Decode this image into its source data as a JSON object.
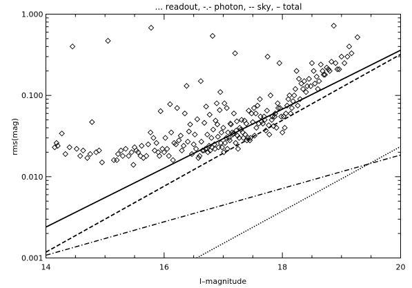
{
  "chart_data": {
    "type": "scatter",
    "title": "... readout, -.- photon, -- sky, – total",
    "xlabel": "I–magnitude",
    "ylabel": "rms(mag)",
    "xlim": [
      14,
      20
    ],
    "ylim": [
      0.001,
      1.0
    ],
    "y_scale": "log",
    "x_ticks": [
      {
        "value": 14,
        "label": "14"
      },
      {
        "value": 16,
        "label": "16"
      },
      {
        "value": 18,
        "label": "18"
      },
      {
        "value": 20,
        "label": "20"
      }
    ],
    "y_ticks": [
      {
        "value": 0.001,
        "label": "0.001"
      },
      {
        "value": 0.01,
        "label": "0.010"
      },
      {
        "value": 0.1,
        "label": "0.100"
      },
      {
        "value": 1.0,
        "label": "1.000"
      }
    ],
    "marker": "open-diamond",
    "color": "#000000",
    "lines": [
      {
        "style": "dotted",
        "x": [
          16.55,
          20.0
        ],
        "y": [
          0.001,
          0.0235
        ]
      },
      {
        "style": "dash-dot",
        "x": [
          14.0,
          20.0
        ],
        "y": [
          0.00108,
          0.0185
        ]
      },
      {
        "style": "dashed",
        "x": [
          14.0,
          20.0
        ],
        "y": [
          0.00118,
          0.32
        ]
      },
      {
        "style": "solid",
        "x": [
          14.0,
          20.0
        ],
        "y": [
          0.0024,
          0.36
        ]
      }
    ],
    "points": [
      [
        14.18,
        0.026
      ],
      [
        14.15,
        0.023
      ],
      [
        14.2,
        0.024
      ],
      [
        14.27,
        0.034
      ],
      [
        14.33,
        0.019
      ],
      [
        14.4,
        0.023
      ],
      [
        14.45,
        0.4
      ],
      [
        14.52,
        0.022
      ],
      [
        14.58,
        0.018
      ],
      [
        14.63,
        0.021
      ],
      [
        14.7,
        0.017
      ],
      [
        14.75,
        0.019
      ],
      [
        14.78,
        0.047
      ],
      [
        14.85,
        0.02
      ],
      [
        14.9,
        0.021
      ],
      [
        14.95,
        0.015
      ],
      [
        15.05,
        0.47
      ],
      [
        15.15,
        0.016
      ],
      [
        15.2,
        0.016
      ],
      [
        15.22,
        0.019
      ],
      [
        15.27,
        0.021
      ],
      [
        15.3,
        0.018
      ],
      [
        15.35,
        0.022
      ],
      [
        15.4,
        0.018
      ],
      [
        15.45,
        0.02
      ],
      [
        15.48,
        0.014
      ],
      [
        15.5,
        0.023
      ],
      [
        15.53,
        0.021
      ],
      [
        15.56,
        0.02
      ],
      [
        15.6,
        0.018
      ],
      [
        15.62,
        0.024
      ],
      [
        15.65,
        0.017
      ],
      [
        15.7,
        0.018
      ],
      [
        15.73,
        0.025
      ],
      [
        15.77,
        0.035
      ],
      [
        15.78,
        0.68
      ],
      [
        15.82,
        0.03
      ],
      [
        15.84,
        0.021
      ],
      [
        15.87,
        0.026
      ],
      [
        15.9,
        0.02
      ],
      [
        15.92,
        0.018
      ],
      [
        15.94,
        0.064
      ],
      [
        15.97,
        0.022
      ],
      [
        16.0,
        0.02
      ],
      [
        16.02,
        0.03
      ],
      [
        16.05,
        0.022
      ],
      [
        16.08,
        0.018
      ],
      [
        16.1,
        0.078
      ],
      [
        16.12,
        0.035
      ],
      [
        16.15,
        0.016
      ],
      [
        16.17,
        0.026
      ],
      [
        16.2,
        0.025
      ],
      [
        16.22,
        0.07
      ],
      [
        16.25,
        0.028
      ],
      [
        16.28,
        0.032
      ],
      [
        16.3,
        0.021
      ],
      [
        16.33,
        0.024
      ],
      [
        16.35,
        0.06
      ],
      [
        16.38,
        0.131
      ],
      [
        16.4,
        0.027
      ],
      [
        16.42,
        0.036
      ],
      [
        16.44,
        0.044
      ],
      [
        16.47,
        0.019
      ],
      [
        16.5,
        0.025
      ],
      [
        16.52,
        0.033
      ],
      [
        16.54,
        0.022
      ],
      [
        16.56,
        0.051
      ],
      [
        16.58,
        0.017
      ],
      [
        16.6,
        0.018
      ],
      [
        16.62,
        0.15
      ],
      [
        16.63,
        0.027
      ],
      [
        16.65,
        0.021
      ],
      [
        16.67,
        0.021
      ],
      [
        16.68,
        0.046
      ],
      [
        16.7,
        0.022
      ],
      [
        16.71,
        0.073
      ],
      [
        16.73,
        0.033
      ],
      [
        16.74,
        0.02
      ],
      [
        16.76,
        0.024
      ],
      [
        16.77,
        0.058
      ],
      [
        16.78,
        0.021
      ],
      [
        16.8,
        0.03
      ],
      [
        16.81,
        0.023
      ],
      [
        16.82,
        0.54
      ],
      [
        16.83,
        0.038
      ],
      [
        16.85,
        0.025
      ],
      [
        16.86,
        0.022
      ],
      [
        16.87,
        0.049
      ],
      [
        16.89,
        0.08
      ],
      [
        16.9,
        0.044
      ],
      [
        16.91,
        0.031
      ],
      [
        16.92,
        0.023
      ],
      [
        16.94,
        0.066
      ],
      [
        16.95,
        0.11
      ],
      [
        16.96,
        0.026
      ],
      [
        16.97,
        0.035
      ],
      [
        16.98,
        0.023
      ],
      [
        17.0,
        0.04
      ],
      [
        17.01,
        0.02
      ],
      [
        17.02,
        0.08
      ],
      [
        17.03,
        0.026
      ],
      [
        17.05,
        0.03
      ],
      [
        17.06,
        0.07
      ],
      [
        17.07,
        0.022
      ],
      [
        17.08,
        0.035
      ],
      [
        17.1,
        0.03
      ],
      [
        17.11,
        0.028
      ],
      [
        17.12,
        0.045
      ],
      [
        17.13,
        0.044
      ],
      [
        17.15,
        0.035
      ],
      [
        17.16,
        0.033
      ],
      [
        17.17,
        0.034
      ],
      [
        17.18,
        0.06
      ],
      [
        17.2,
        0.33
      ],
      [
        17.21,
        0.026
      ],
      [
        17.22,
        0.037
      ],
      [
        17.23,
        0.048
      ],
      [
        17.24,
        0.032
      ],
      [
        17.25,
        0.022
      ],
      [
        17.27,
        0.03
      ],
      [
        17.28,
        0.04
      ],
      [
        17.3,
        0.038
      ],
      [
        17.31,
        0.05
      ],
      [
        17.33,
        0.035
      ],
      [
        17.34,
        0.03
      ],
      [
        17.36,
        0.049
      ],
      [
        17.37,
        0.033
      ],
      [
        17.39,
        0.045
      ],
      [
        17.4,
        0.028
      ],
      [
        17.42,
        0.03
      ],
      [
        17.43,
        0.065
      ],
      [
        17.45,
        0.028
      ],
      [
        17.46,
        0.03
      ],
      [
        17.48,
        0.06
      ],
      [
        17.5,
        0.047
      ],
      [
        17.52,
        0.07
      ],
      [
        17.53,
        0.032
      ],
      [
        17.55,
        0.06
      ],
      [
        17.56,
        0.04
      ],
      [
        17.58,
        0.075
      ],
      [
        17.6,
        0.045
      ],
      [
        17.62,
        0.09
      ],
      [
        17.63,
        0.055
      ],
      [
        17.65,
        0.048
      ],
      [
        17.67,
        0.045
      ],
      [
        17.69,
        0.055
      ],
      [
        17.7,
        0.05
      ],
      [
        17.72,
        0.037
      ],
      [
        17.74,
        0.065
      ],
      [
        17.75,
        0.3
      ],
      [
        17.77,
        0.043
      ],
      [
        17.78,
        0.033
      ],
      [
        17.8,
        0.1
      ],
      [
        17.82,
        0.05
      ],
      [
        17.83,
        0.055
      ],
      [
        17.85,
        0.042
      ],
      [
        17.87,
        0.055
      ],
      [
        17.88,
        0.06
      ],
      [
        17.9,
        0.04
      ],
      [
        17.92,
        0.08
      ],
      [
        17.93,
        0.07
      ],
      [
        17.95,
        0.25
      ],
      [
        17.96,
        0.07
      ],
      [
        17.98,
        0.055
      ],
      [
        18.0,
        0.035
      ],
      [
        18.02,
        0.055
      ],
      [
        18.04,
        0.04
      ],
      [
        18.06,
        0.06
      ],
      [
        18.08,
        0.075
      ],
      [
        18.1,
        0.09
      ],
      [
        18.12,
        0.1
      ],
      [
        18.14,
        0.06
      ],
      [
        18.16,
        0.07
      ],
      [
        18.18,
        0.085
      ],
      [
        18.2,
        0.1
      ],
      [
        18.22,
        0.12
      ],
      [
        18.24,
        0.2
      ],
      [
        18.26,
        0.075
      ],
      [
        18.28,
        0.16
      ],
      [
        18.3,
        0.09
      ],
      [
        18.32,
        0.14
      ],
      [
        18.35,
        0.12
      ],
      [
        18.37,
        0.15
      ],
      [
        18.4,
        0.11
      ],
      [
        18.42,
        0.13
      ],
      [
        18.45,
        0.16
      ],
      [
        18.48,
        0.13
      ],
      [
        18.5,
        0.25
      ],
      [
        18.53,
        0.2
      ],
      [
        18.55,
        0.14
      ],
      [
        18.58,
        0.17
      ],
      [
        18.6,
        0.12
      ],
      [
        18.62,
        0.15
      ],
      [
        18.65,
        0.24
      ],
      [
        18.68,
        0.2
      ],
      [
        18.7,
        0.18
      ],
      [
        18.72,
        0.18
      ],
      [
        18.75,
        0.22
      ],
      [
        18.78,
        0.21
      ],
      [
        18.8,
        0.2
      ],
      [
        18.83,
        0.26
      ],
      [
        18.87,
        0.72
      ],
      [
        18.9,
        0.25
      ],
      [
        18.93,
        0.21
      ],
      [
        18.96,
        0.21
      ],
      [
        19.0,
        0.3
      ],
      [
        19.05,
        0.25
      ],
      [
        19.1,
        0.3
      ],
      [
        19.13,
        0.4
      ],
      [
        19.17,
        0.33
      ],
      [
        19.27,
        0.52
      ]
    ]
  }
}
